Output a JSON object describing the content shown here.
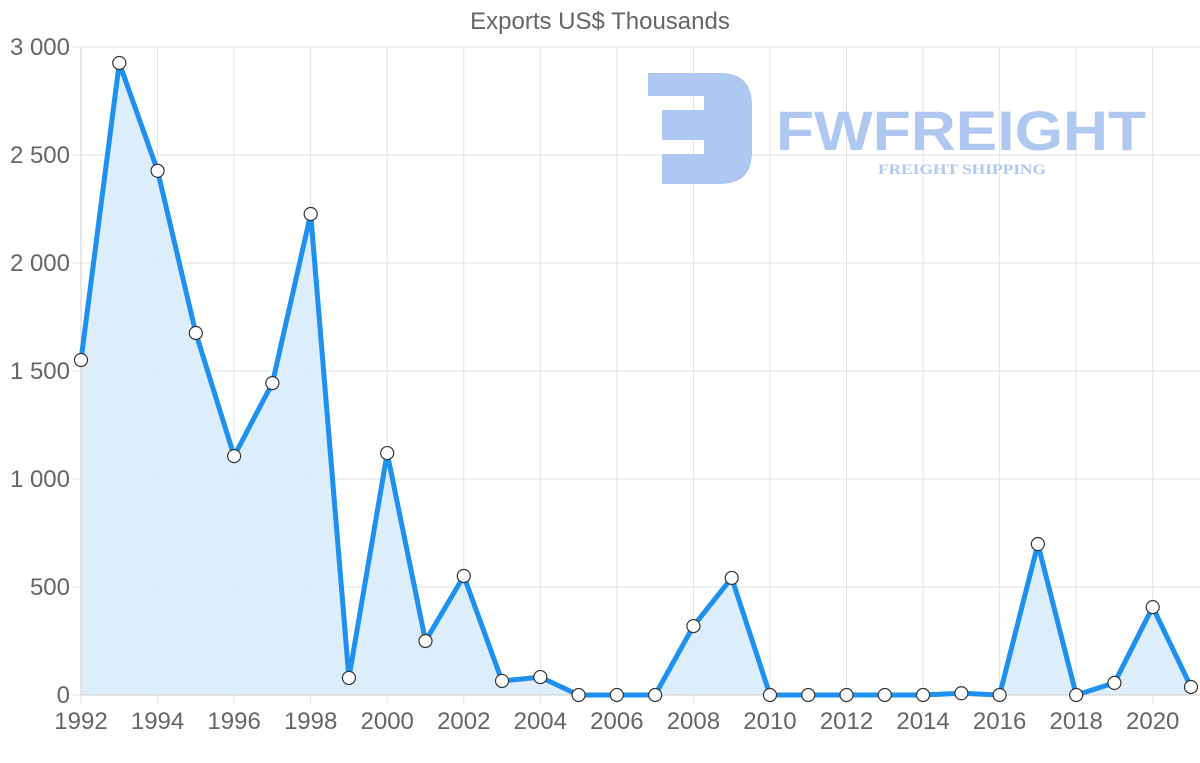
{
  "chart_data": {
    "type": "line",
    "title": "Exports US$ Thousands",
    "xlabel": "",
    "ylabel": "",
    "ylim": [
      0,
      3000
    ],
    "grid": true,
    "legend": null,
    "fill": true,
    "x": [
      1992,
      1993,
      1994,
      1995,
      1996,
      1997,
      1998,
      1999,
      2000,
      2001,
      2002,
      2003,
      2004,
      2005,
      2006,
      2007,
      2008,
      2009,
      2010,
      2011,
      2012,
      2013,
      2014,
      2015,
      2016,
      2017,
      2018,
      2019,
      2020,
      2021
    ],
    "series": [
      {
        "name": "Exports US$ Thousands",
        "values": [
          1551,
          2926,
          2427,
          1676,
          1106,
          1444,
          2227,
          79,
          1120,
          250,
          551,
          65,
          83,
          0,
          0,
          0,
          319,
          542,
          0,
          0,
          0,
          0,
          0,
          8,
          0,
          699,
          0,
          56,
          407,
          37
        ]
      }
    ],
    "y_ticks": [
      0,
      500,
      1000,
      1500,
      2000,
      2500,
      3000
    ],
    "y_tick_labels": [
      "0",
      "500",
      "1 000",
      "1 500",
      "2 000",
      "2 500",
      "3 000"
    ],
    "x_tick_labels": [
      "1992",
      "1994",
      "1996",
      "1998",
      "2000",
      "2002",
      "2004",
      "2006",
      "2008",
      "2010",
      "2012",
      "2014",
      "2016",
      "2018",
      "2020"
    ],
    "colors": {
      "line": "#1e90ef",
      "fill": "#d8ebfc",
      "grid": "#e2e2e2",
      "text": "#666666"
    }
  },
  "watermark": {
    "brand": "FWFREIGHT",
    "tagline": "FREIGHT SHIPPING"
  }
}
